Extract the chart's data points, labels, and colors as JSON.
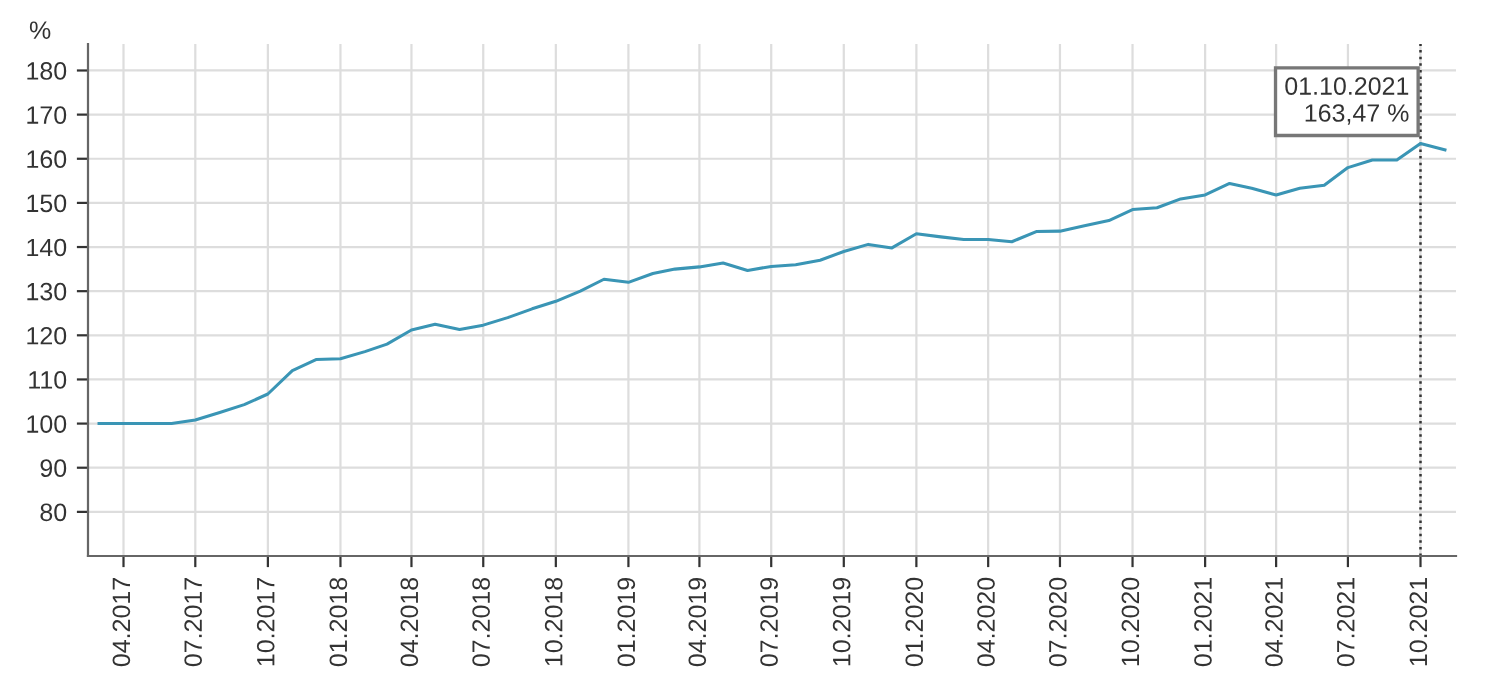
{
  "chart_data": {
    "type": "line",
    "ylabel": "%",
    "x": [
      "2017-03",
      "2017-04",
      "2017-05",
      "2017-06",
      "2017-07",
      "2017-08",
      "2017-09",
      "2017-10",
      "2017-11",
      "2017-12",
      "2018-01",
      "2018-02",
      "2018-03",
      "2018-04",
      "2018-05",
      "2018-06",
      "2018-07",
      "2018-08",
      "2018-09",
      "2018-10",
      "2018-11",
      "2018-12",
      "2019-01",
      "2019-02",
      "2019-03",
      "2019-04",
      "2019-05",
      "2019-06",
      "2019-07",
      "2019-08",
      "2019-09",
      "2019-10",
      "2019-11",
      "2019-12",
      "2020-01",
      "2020-02",
      "2020-03",
      "2020-04",
      "2020-05",
      "2020-06",
      "2020-07",
      "2020-08",
      "2020-09",
      "2020-10",
      "2020-11",
      "2020-12",
      "2021-01",
      "2021-02",
      "2021-03",
      "2021-04",
      "2021-05",
      "2021-06",
      "2021-07",
      "2021-08",
      "2021-09",
      "2021-10",
      "2021-11"
    ],
    "series": [
      {
        "color": "#3a95b5",
        "values": [
          100,
          100,
          100,
          100,
          100.8,
          102.5,
          104.3,
          106.7,
          112,
          114.5,
          114.7,
          116.3,
          118,
          121.2,
          122.5,
          121.3,
          122.3,
          124,
          126,
          127.7,
          130,
          132.7,
          132,
          134,
          135,
          135.5,
          136.4,
          134.7,
          135.6,
          136,
          137,
          139,
          140.6,
          139.8,
          143,
          142.3,
          141.7,
          141.7,
          141.2,
          143.5,
          143.6,
          144.8,
          146,
          148.5,
          148.9,
          150.9,
          151.8,
          154.4,
          153.3,
          151.8,
          153.3,
          154,
          158,
          159.7,
          159.7,
          163.47,
          162
        ]
      }
    ],
    "xlim": [
      "2017-02-15",
      "2021-11-15"
    ],
    "xticks": [
      {
        "value": "2017-04",
        "label": "04.2017"
      },
      {
        "value": "2017-07",
        "label": "07.2017"
      },
      {
        "value": "2017-10",
        "label": "10.2017"
      },
      {
        "value": "2018-01",
        "label": "01.2018"
      },
      {
        "value": "2018-04",
        "label": "04.2018"
      },
      {
        "value": "2018-07",
        "label": "07.2018"
      },
      {
        "value": "2018-10",
        "label": "10.2018"
      },
      {
        "value": "2019-01",
        "label": "01.2019"
      },
      {
        "value": "2019-04",
        "label": "04.2019"
      },
      {
        "value": "2019-07",
        "label": "07.2019"
      },
      {
        "value": "2019-10",
        "label": "10.2019"
      },
      {
        "value": "2020-01",
        "label": "01.2020"
      },
      {
        "value": "2020-04",
        "label": "04.2020"
      },
      {
        "value": "2020-07",
        "label": "07.2020"
      },
      {
        "value": "2020-10",
        "label": "10.2020"
      },
      {
        "value": "2021-01",
        "label": "01.2021"
      },
      {
        "value": "2021-04",
        "label": "04.2021"
      },
      {
        "value": "2021-07",
        "label": "07.2021"
      },
      {
        "value": "2021-10",
        "label": "10.2021"
      }
    ],
    "ylim": [
      70,
      186
    ],
    "yticks": [
      80,
      90,
      100,
      110,
      120,
      130,
      140,
      150,
      160,
      170,
      180
    ],
    "grid": true,
    "line_style": "solid",
    "ref_lines": [
      {
        "axis": "x",
        "value": "2021-10-01",
        "color": "#333333",
        "line_style": "dotted"
      }
    ],
    "annotations": [
      {
        "text": "01.10.2021\n163,47 %",
        "x": "2021-10-01",
        "y": 163.47
      }
    ]
  }
}
